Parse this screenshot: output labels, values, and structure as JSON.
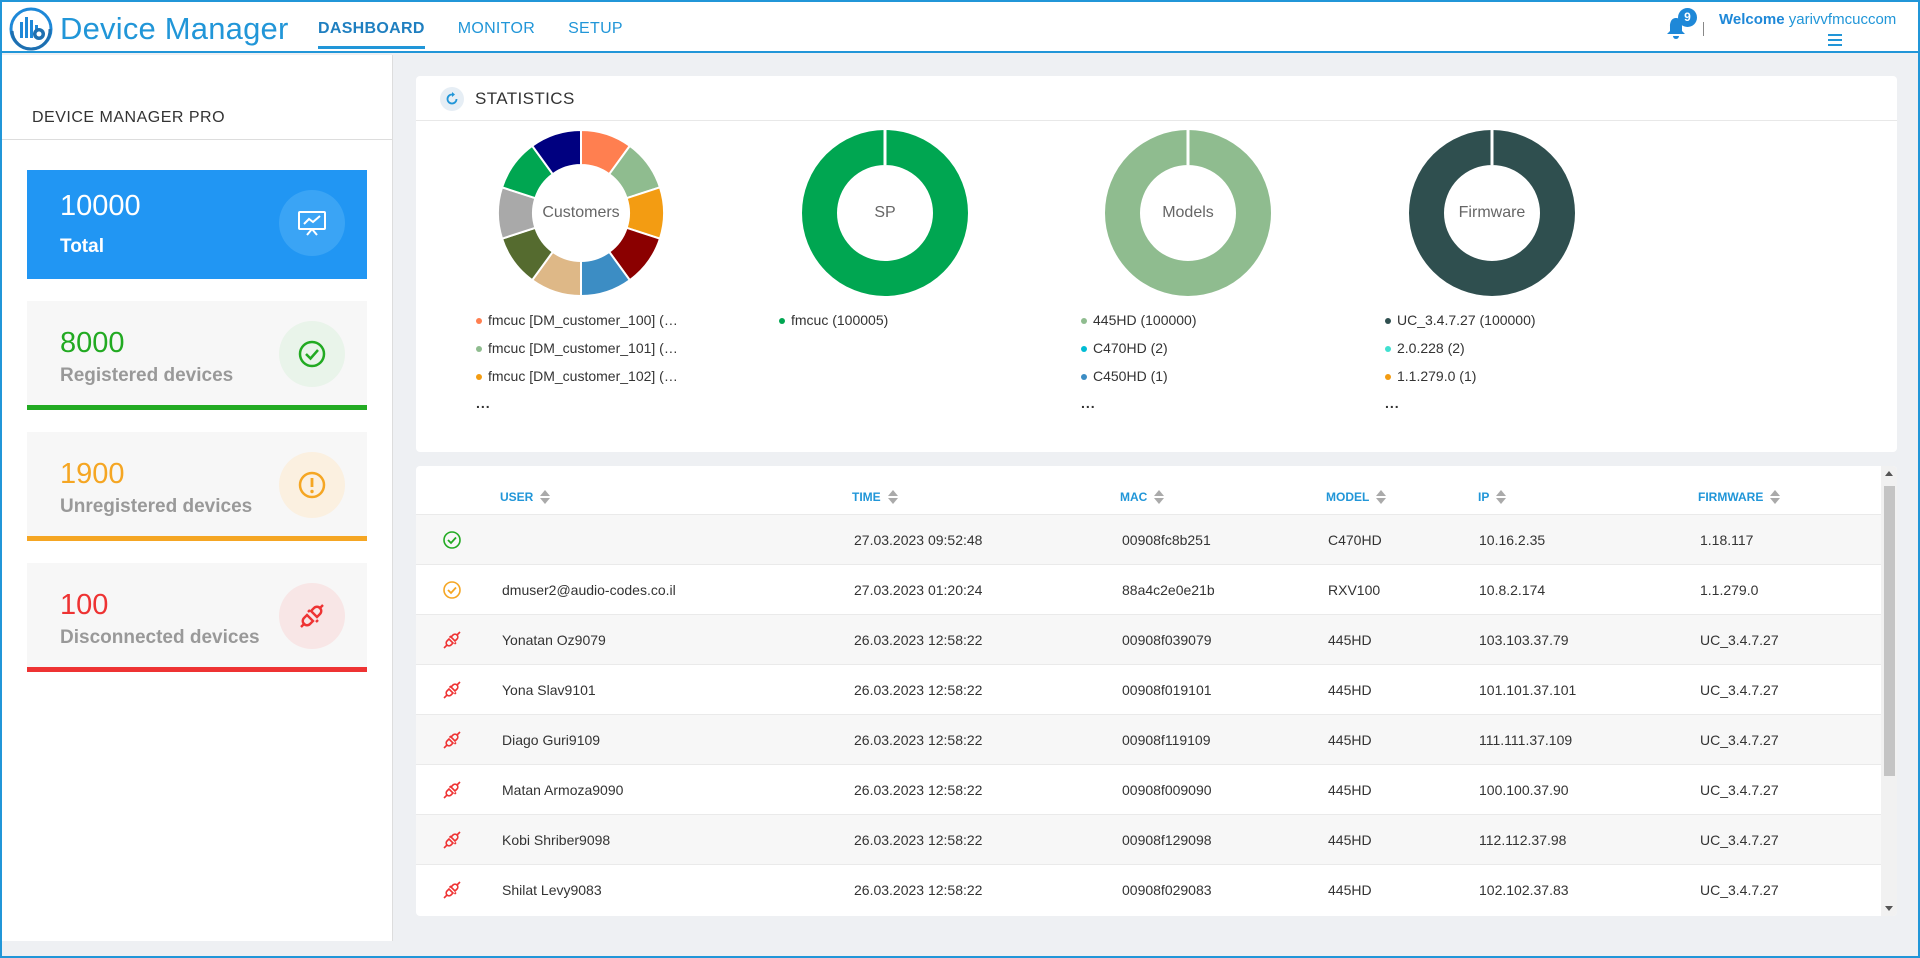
{
  "app": {
    "title": "Device Manager"
  },
  "nav": {
    "tabs": [
      {
        "label": "DASHBOARD",
        "active": true
      },
      {
        "label": "MONITOR",
        "active": false
      },
      {
        "label": "SETUP",
        "active": false
      }
    ]
  },
  "header": {
    "notification_count": "9",
    "welcome_label": "Welcome",
    "username": "yarivvfmcuccom"
  },
  "sidebar": {
    "title": "DEVICE MANAGER PRO",
    "cards": [
      {
        "value": "10000",
        "label": "Total",
        "icon": "presentation-chart-icon"
      },
      {
        "value": "8000",
        "label": "Registered devices",
        "icon": "check-circle-icon",
        "color": "#22aa22"
      },
      {
        "value": "1900",
        "label": "Unregistered devices",
        "icon": "exclamation-circle-icon",
        "color": "#f5a623"
      },
      {
        "value": "100",
        "label": "Disconnected devices",
        "icon": "disconnected-plug-icon",
        "color": "#ee3333"
      }
    ]
  },
  "statistics": {
    "title": "STATISTICS",
    "charts": [
      {
        "label": "Customers",
        "slices": [
          "#ff7f50",
          "#8fbc8f",
          "#f39c12",
          "#8b0000",
          "#3c8dc4",
          "#deb887",
          "#556b2f",
          "#a9a9a9",
          "#00a651",
          "#000080"
        ],
        "legend": [
          {
            "text": "fmcuc [DM_customer_100] (…",
            "color": "#ff7f50"
          },
          {
            "text": "fmcuc [DM_customer_101] (…",
            "color": "#8fbc8f"
          },
          {
            "text": "fmcuc [DM_customer_102] (…",
            "color": "#f39c12"
          }
        ],
        "more": "..."
      },
      {
        "label": "SP",
        "slices": [
          "#00a651"
        ],
        "legend": [
          {
            "text": "fmcuc (100005)",
            "color": "#00a651"
          }
        ],
        "more": ""
      },
      {
        "label": "Models",
        "slices": [
          "#8fbc8f"
        ],
        "legend": [
          {
            "text": "445HD (100000)",
            "color": "#8fbc8f"
          },
          {
            "text": "C470HD (2)",
            "color": "#00bcd4"
          },
          {
            "text": "C450HD (1)",
            "color": "#3c8dc4"
          }
        ],
        "more": "..."
      },
      {
        "label": "Firmware",
        "slices": [
          "#2f4f4f"
        ],
        "legend": [
          {
            "text": "UC_3.4.7.27 (100000)",
            "color": "#2f4f4f"
          },
          {
            "text": "2.0.228 (2)",
            "color": "#40e0d0"
          },
          {
            "text": "1.1.279.0 (1)",
            "color": "#f39c12"
          }
        ],
        "more": "..."
      }
    ]
  },
  "table": {
    "columns": [
      "USER",
      "TIME",
      "MAC",
      "MODEL",
      "IP",
      "FIRMWARE"
    ],
    "rows": [
      {
        "status": "registered",
        "user": "",
        "time": "27.03.2023 09:52:48",
        "mac": "00908fc8b251",
        "model": "C470HD",
        "ip": "10.16.2.35",
        "firmware": "1.18.117"
      },
      {
        "status": "unregistered",
        "user": "dmuser2@audio-codes.co.il",
        "time": "27.03.2023 01:20:24",
        "mac": "88a4c2e0e21b",
        "model": "RXV100",
        "ip": "10.8.2.174",
        "firmware": "1.1.279.0"
      },
      {
        "status": "disconnected",
        "user": "Yonatan Oz9079",
        "time": "26.03.2023 12:58:22",
        "mac": "00908f039079",
        "model": "445HD",
        "ip": "103.103.37.79",
        "firmware": "UC_3.4.7.27"
      },
      {
        "status": "disconnected",
        "user": "Yona Slav9101",
        "time": "26.03.2023 12:58:22",
        "mac": "00908f019101",
        "model": "445HD",
        "ip": "101.101.37.101",
        "firmware": "UC_3.4.7.27"
      },
      {
        "status": "disconnected",
        "user": "Diago Guri9109",
        "time": "26.03.2023 12:58:22",
        "mac": "00908f119109",
        "model": "445HD",
        "ip": "111.111.37.109",
        "firmware": "UC_3.4.7.27"
      },
      {
        "status": "disconnected",
        "user": "Matan Armoza9090",
        "time": "26.03.2023 12:58:22",
        "mac": "00908f009090",
        "model": "445HD",
        "ip": "100.100.37.90",
        "firmware": "UC_3.4.7.27"
      },
      {
        "status": "disconnected",
        "user": "Kobi Shriber9098",
        "time": "26.03.2023 12:58:22",
        "mac": "00908f129098",
        "model": "445HD",
        "ip": "112.112.37.98",
        "firmware": "UC_3.4.7.27"
      },
      {
        "status": "disconnected",
        "user": "Shilat Levy9083",
        "time": "26.03.2023 12:58:22",
        "mac": "00908f029083",
        "model": "445HD",
        "ip": "102.102.37.83",
        "firmware": "UC_3.4.7.27"
      }
    ]
  }
}
